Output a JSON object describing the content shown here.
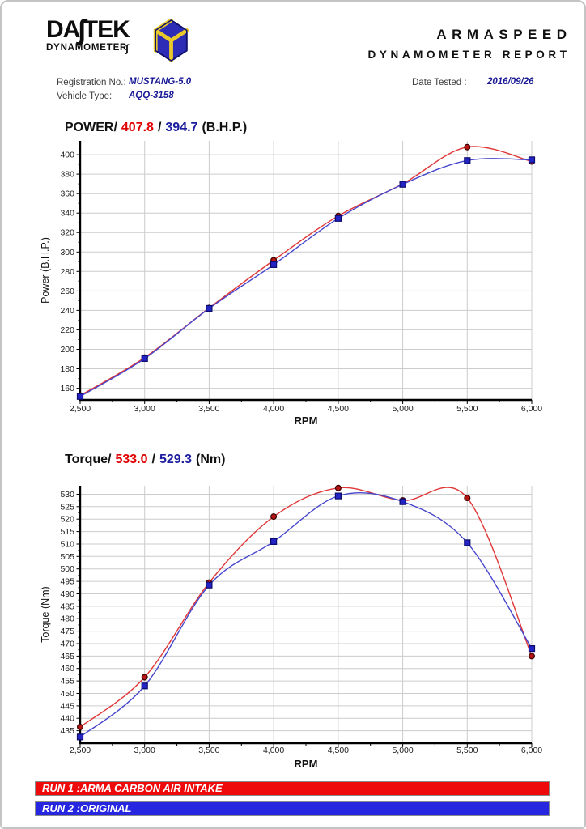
{
  "theme": {
    "run1_text": "#e00000",
    "run2_text": "#1b1b9e",
    "value_text": "#1a1a96",
    "grid_color": "#cccccc",
    "axis_color": "#000000"
  },
  "header": {
    "logo": {
      "main_start": "DA",
      "s_glyph": "∫",
      "main_end": "TEK",
      "sub_start": "DYNAMOMETER",
      "sub_s": "∫",
      "cube_colors": {
        "face_blue": "#2c2cb6",
        "edge_yellow": "#e9c929",
        "outline_navy": "#12126e"
      }
    },
    "report_title_line1": "ARMASPEED",
    "report_title_line2": "DYNAMOMETER REPORT"
  },
  "info": {
    "registration_label": "Registration No.:",
    "registration_value": "MUSTANG-5.0",
    "vehicle_type_label": "Vehicle Type:",
    "vehicle_type_value": "AQQ-3158",
    "date_tested_label": "Date Tested :",
    "date_tested_value": "2016/09/26"
  },
  "chart_data": [
    {
      "id": "power",
      "type": "line",
      "title": "POWER/ 407.8 / 394.7 (B.H.P.)",
      "title_parts": {
        "label": "POWER/",
        "run1_max": "407.8",
        "separator": "/",
        "run2_max": "394.7",
        "unit": "(B.H.P.)"
      },
      "xlabel": "RPM",
      "ylabel": "Power (B.H.P.)",
      "x": [
        2500,
        3000,
        3500,
        4000,
        4500,
        5000,
        5500,
        6000
      ],
      "xlim": [
        2500,
        6000
      ],
      "ylim": [
        148,
        414.2
      ],
      "xticks": {
        "major": 500,
        "minor": 250,
        "format": "comma"
      },
      "yticks": {
        "from": 160,
        "to": 400,
        "step": 20,
        "minor": 10
      },
      "grid": true,
      "legend_position": "none",
      "series": [
        {
          "name": "RUN 1 :ARMA CARBON AIR INTAKE",
          "color": "#e03636",
          "marker": "circle",
          "marker_fill": "#b41414",
          "marker_stroke": "#3c0000",
          "values": [
            152.5,
            191.5,
            242.5,
            291.5,
            337.0,
            370.0,
            407.8,
            393.0
          ]
        },
        {
          "name": "RUN 2 :ORIGINAL",
          "color": "#4646cd",
          "marker": "square",
          "marker_fill": "#2424c4",
          "marker_stroke": "#0c0c6e",
          "values": [
            151.5,
            190.5,
            242.0,
            287.0,
            334.5,
            369.5,
            394.0,
            394.7
          ]
        }
      ]
    },
    {
      "id": "torque",
      "type": "line",
      "title": "Torque/ 533.0 / 529.3 (Nm)",
      "title_parts": {
        "label": "Torque/",
        "run1_max": "533.0",
        "separator": "/",
        "run2_max": "529.3",
        "unit": "(Nm)"
      },
      "xlabel": "RPM",
      "ylabel": "Torque (Nm)",
      "x": [
        2500,
        3000,
        3500,
        4000,
        4500,
        5000,
        5500,
        6000
      ],
      "xlim": [
        2500,
        6000
      ],
      "ylim": [
        430,
        533.4
      ],
      "xticks": {
        "major": 500,
        "minor": 250,
        "format": "comma"
      },
      "yticks": {
        "from": 435,
        "to": 530,
        "step": 5,
        "minor": 2.5
      },
      "grid": true,
      "legend_position": "none",
      "series": [
        {
          "name": "RUN 1 :ARMA CARBON AIR INTAKE",
          "color": "#e03636",
          "marker": "circle",
          "marker_fill": "#b41414",
          "marker_stroke": "#3c0000",
          "values": [
            436.5,
            456.5,
            494.5,
            521.0,
            532.5,
            527.5,
            528.5,
            465.0
          ]
        },
        {
          "name": "RUN 2 :ORIGINAL",
          "color": "#4646cd",
          "marker": "square",
          "marker_fill": "#2424c4",
          "marker_stroke": "#0c0c6e",
          "values": [
            432.5,
            453.0,
            493.5,
            511.0,
            529.3,
            527.0,
            510.5,
            468.0
          ]
        }
      ]
    }
  ],
  "legend": {
    "run1": {
      "label": "RUN 1 :ARMA CARBON AIR INTAKE",
      "color": "#ee0a0a"
    },
    "run2": {
      "label": "RUN 2 :ORIGINAL",
      "color": "#2626e0"
    }
  }
}
